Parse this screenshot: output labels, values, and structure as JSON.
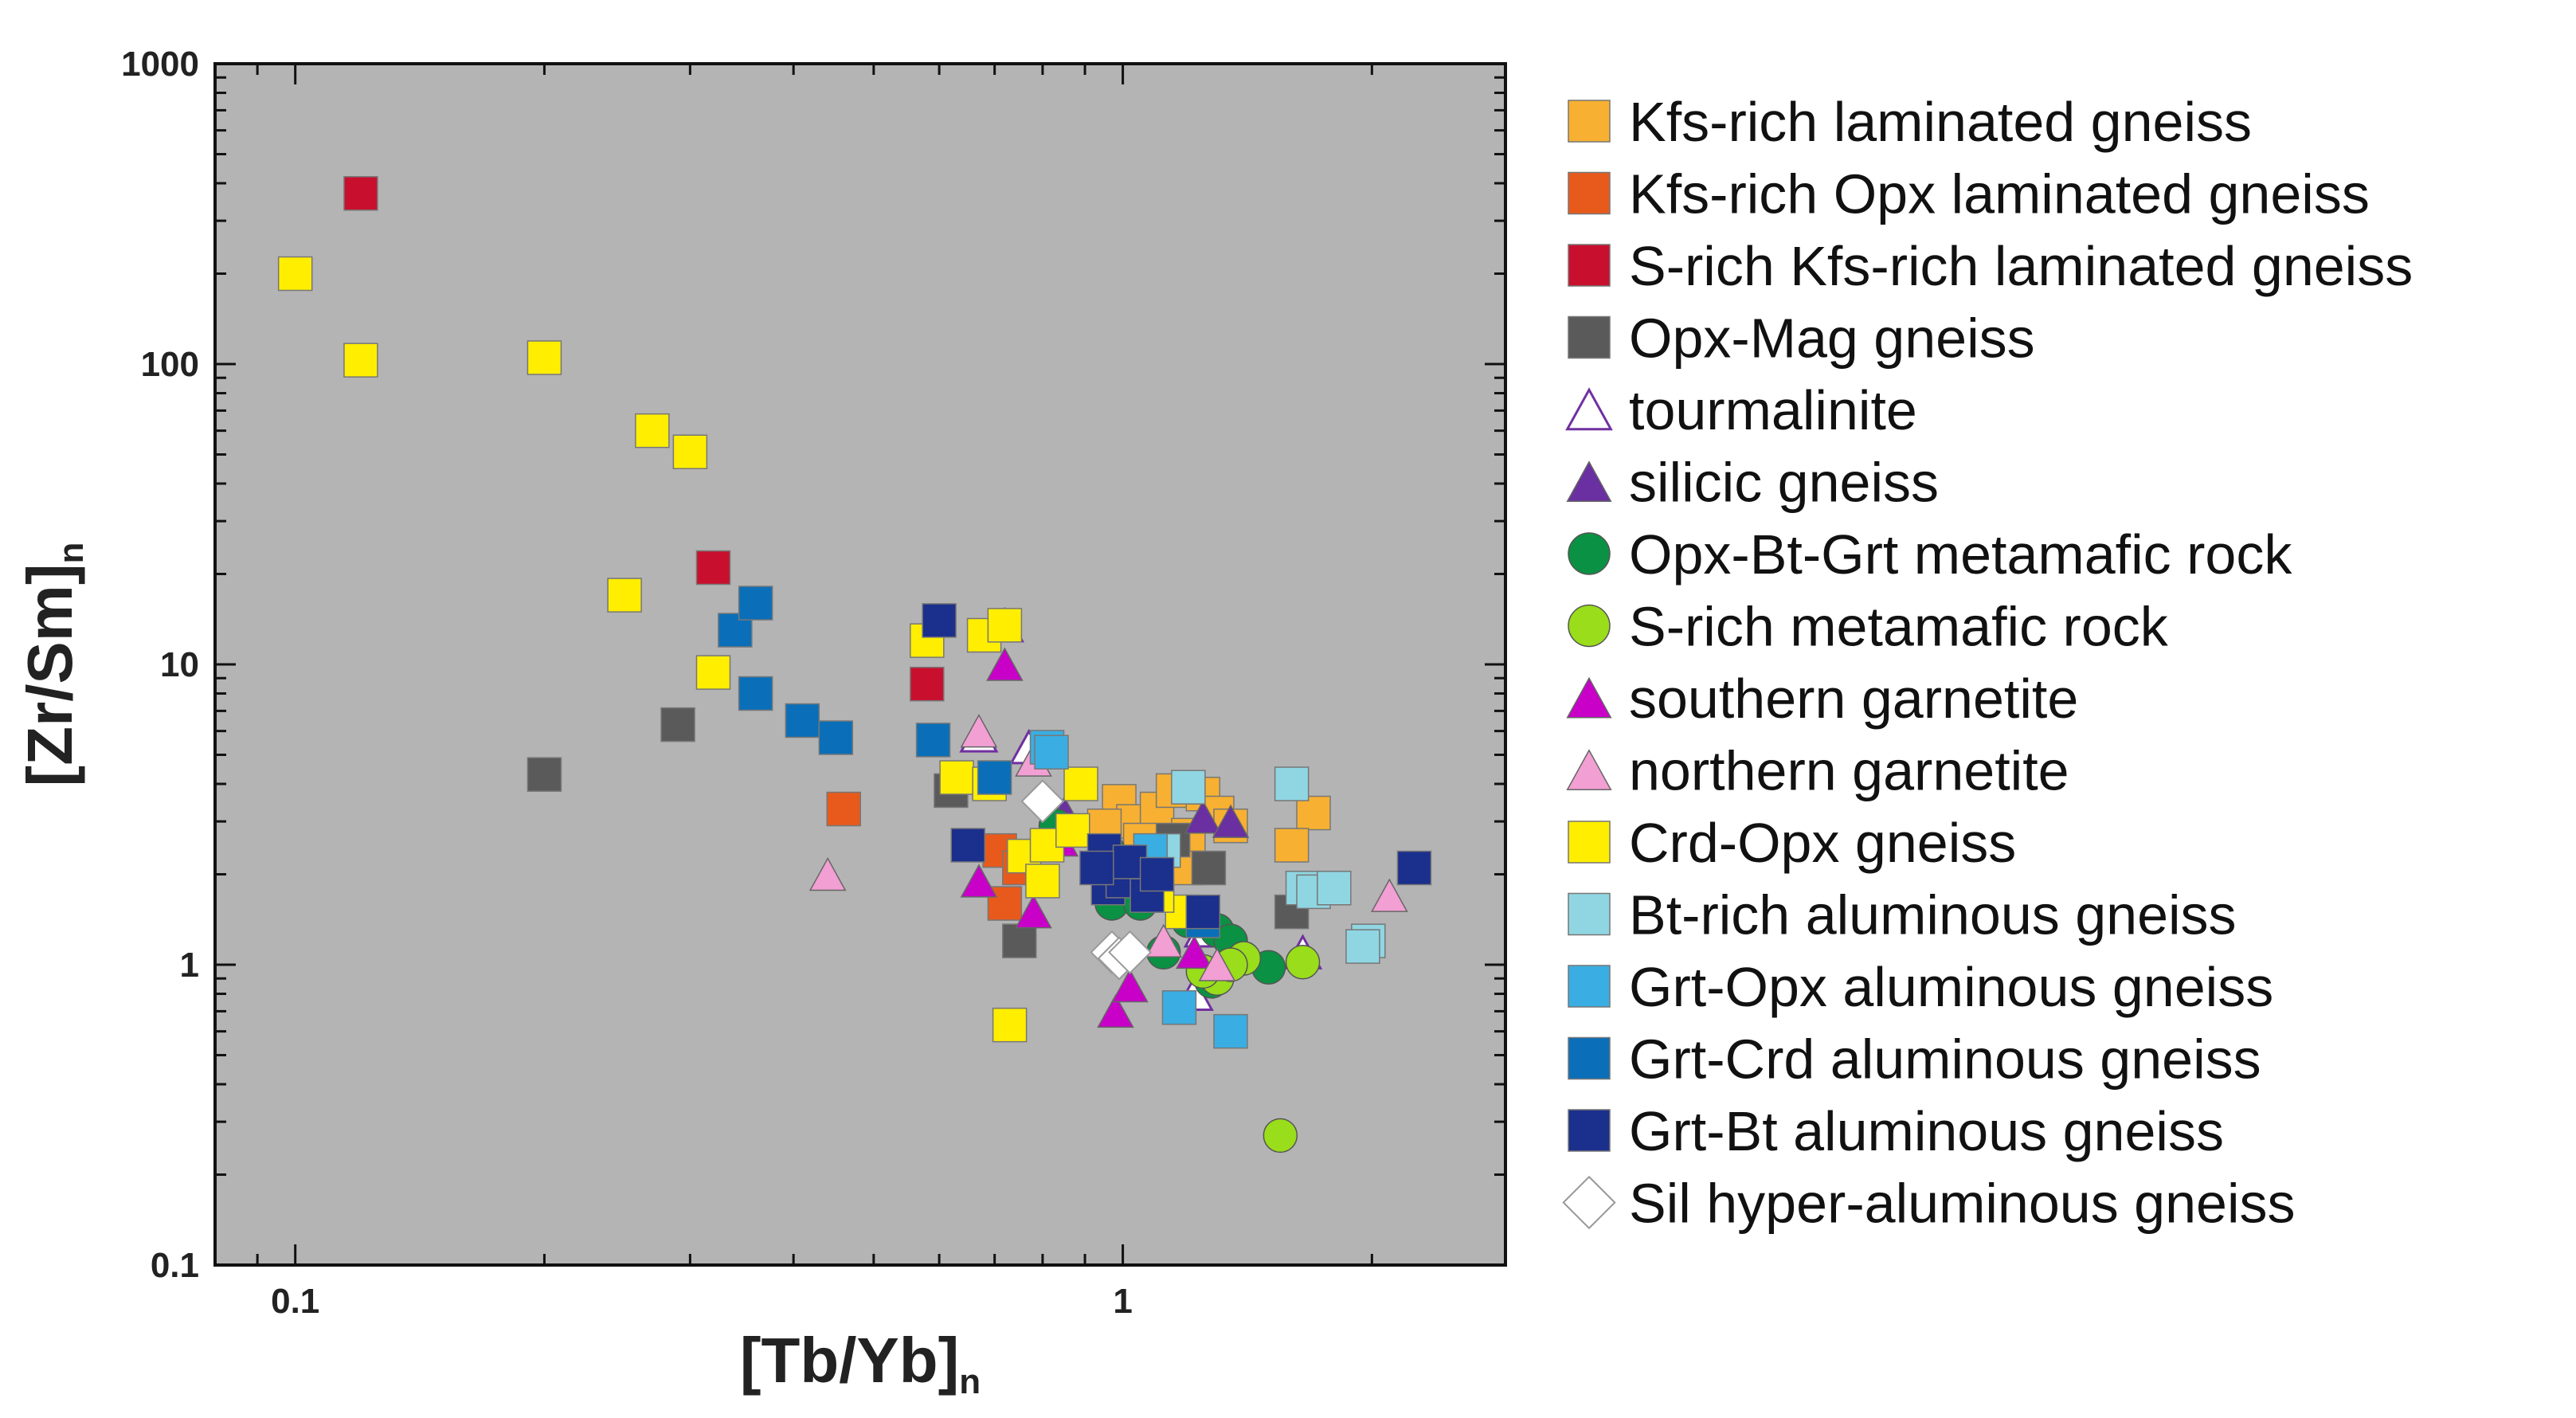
{
  "chart_data": {
    "type": "scatter",
    "xlabel": "[Tb/Yb]",
    "xlabel_sub": "n",
    "ylabel": "[Zr/Sm]",
    "ylabel_sub": "n",
    "x_scale": "log",
    "y_scale": "log",
    "xlim": [
      0.08,
      2.9
    ],
    "ylim": [
      0.1,
      1000
    ],
    "x_major_ticks": [
      {
        "value": 0.1,
        "label": "0.1"
      },
      {
        "value": 1,
        "label": "1"
      }
    ],
    "y_major_ticks": [
      {
        "value": 0.1,
        "label": "0.1"
      },
      {
        "value": 1,
        "label": "1"
      },
      {
        "value": 10,
        "label": "10"
      },
      {
        "value": 100,
        "label": "100"
      },
      {
        "value": 1000,
        "label": "1000"
      }
    ],
    "background": "#b4b4b4",
    "legend_position": "right",
    "series": [
      {
        "name": "Kfs-rich laminated gneiss",
        "marker": "square",
        "color": "#f7b031",
        "points": [
          [
            0.99,
            3.5
          ],
          [
            1.03,
            3.0
          ],
          [
            1.1,
            3.3
          ],
          [
            1.15,
            3.8
          ],
          [
            1.2,
            2.7
          ],
          [
            1.25,
            3.7
          ],
          [
            1.3,
            3.2
          ],
          [
            1.35,
            2.9
          ],
          [
            1.15,
            2.2
          ],
          [
            1.7,
            3.2
          ],
          [
            1.6,
            2.5
          ],
          [
            1.05,
            2.6
          ],
          [
            0.95,
            2.9
          ],
          [
            1.2,
            2.1
          ]
        ]
      },
      {
        "name": "Kfs-rich Opx laminated gneiss",
        "marker": "square",
        "color": "#e85a1b",
        "points": [
          [
            0.46,
            3.3
          ],
          [
            0.71,
            2.4
          ],
          [
            0.72,
            1.6
          ],
          [
            0.75,
            2.1
          ]
        ]
      },
      {
        "name": "S-rich Kfs-rich laminated gneiss",
        "marker": "square",
        "color": "#c8102e",
        "points": [
          [
            0.12,
            370
          ],
          [
            0.32,
            21
          ],
          [
            0.58,
            8.6
          ]
        ]
      },
      {
        "name": "Opx-Mag gneiss",
        "marker": "square",
        "color": "#5a5a5a",
        "points": [
          [
            0.2,
            4.3
          ],
          [
            0.29,
            6.3
          ],
          [
            0.62,
            3.8
          ],
          [
            0.75,
            1.2
          ],
          [
            1.27,
            2.1
          ],
          [
            1.6,
            1.5
          ],
          [
            1.15,
            2.6
          ]
        ]
      },
      {
        "name": "tourmalinite",
        "marker": "triangle-open",
        "color": "#7030a0",
        "points": [
          [
            0.72,
            13.5
          ],
          [
            0.67,
            5.8
          ],
          [
            0.77,
            5.3
          ],
          [
            1.25,
            1.3
          ],
          [
            1.65,
            1.1
          ],
          [
            1.22,
            0.8
          ]
        ]
      },
      {
        "name": "silicic gneiss",
        "marker": "triangle",
        "color": "#6a2fa0",
        "points": [
          [
            1.25,
            3.1
          ],
          [
            1.35,
            3.0
          ],
          [
            0.85,
            3.2
          ]
        ]
      },
      {
        "name": "Opx-Bt-Grt metamafic rock",
        "marker": "circle",
        "color": "#0a9143",
        "points": [
          [
            0.97,
            1.6
          ],
          [
            1.05,
            1.9
          ],
          [
            0.96,
            2.4
          ],
          [
            1.05,
            1.6
          ],
          [
            1.2,
            1.4
          ],
          [
            1.3,
            1.3
          ],
          [
            1.35,
            1.2
          ],
          [
            1.5,
            0.98
          ],
          [
            0.83,
            2.9
          ],
          [
            1.12,
            1.1
          ],
          [
            1.28,
            0.88
          ]
        ]
      },
      {
        "name": "S-rich metamafic rock",
        "marker": "circle",
        "color": "#99dd1b",
        "points": [
          [
            1.3,
            0.9
          ],
          [
            1.25,
            0.95
          ],
          [
            1.4,
            1.05
          ],
          [
            1.65,
            1.02
          ],
          [
            1.35,
            1.0
          ],
          [
            1.55,
            0.27
          ]
        ]
      },
      {
        "name": "southern garnetite",
        "marker": "triangle",
        "color": "#c800c8",
        "points": [
          [
            0.72,
            10.0
          ],
          [
            0.67,
            1.9
          ],
          [
            0.78,
            1.5
          ],
          [
            0.84,
            2.6
          ],
          [
            0.98,
            0.7
          ],
          [
            1.02,
            0.85
          ],
          [
            1.07,
            1.8
          ],
          [
            1.22,
            1.1
          ]
        ]
      },
      {
        "name": "northern garnetite",
        "marker": "triangle",
        "color": "#f29fd3",
        "points": [
          [
            0.44,
            2.0
          ],
          [
            0.67,
            6.0
          ],
          [
            0.78,
            4.8
          ],
          [
            1.12,
            1.2
          ],
          [
            2.1,
            1.7
          ],
          [
            1.3,
            1.0
          ]
        ]
      },
      {
        "name": "Crd-Opx gneiss",
        "marker": "square",
        "color": "#ffee00",
        "points": [
          [
            0.1,
            200
          ],
          [
            0.12,
            103
          ],
          [
            0.2,
            105
          ],
          [
            0.27,
            60
          ],
          [
            0.3,
            51
          ],
          [
            0.25,
            17
          ],
          [
            0.32,
            9.4
          ],
          [
            0.58,
            12.0
          ],
          [
            0.68,
            12.5
          ],
          [
            0.72,
            13.5
          ],
          [
            0.63,
            4.2
          ],
          [
            0.69,
            4.0
          ],
          [
            0.76,
            2.3
          ],
          [
            0.81,
            2.5
          ],
          [
            0.87,
            2.8
          ],
          [
            0.89,
            4.0
          ],
          [
            0.73,
            0.63
          ],
          [
            0.8,
            1.9
          ],
          [
            1.18,
            1.5
          ],
          [
            1.1,
            1.7
          ]
        ]
      },
      {
        "name": "Bt-rich aluminous gneiss",
        "marker": "square",
        "color": "#8fd6e2",
        "points": [
          [
            1.2,
            3.9
          ],
          [
            1.6,
            4.0
          ],
          [
            1.65,
            1.8
          ],
          [
            1.7,
            1.75
          ],
          [
            1.8,
            1.8
          ],
          [
            1.98,
            1.2
          ],
          [
            1.95,
            1.15
          ],
          [
            1.12,
            2.4
          ]
        ]
      },
      {
        "name": "Grt-Opx aluminous gneiss",
        "marker": "square",
        "color": "#3aaee2",
        "points": [
          [
            0.81,
            5.3
          ],
          [
            1.08,
            2.4
          ],
          [
            1.17,
            0.72
          ],
          [
            1.35,
            0.6
          ],
          [
            0.82,
            5.1
          ]
        ]
      },
      {
        "name": "Grt-Crd aluminous gneiss",
        "marker": "square",
        "color": "#0a6fb8",
        "points": [
          [
            0.34,
            13.0
          ],
          [
            0.36,
            16.0
          ],
          [
            0.36,
            8.0
          ],
          [
            0.41,
            6.5
          ],
          [
            0.45,
            5.7
          ],
          [
            0.59,
            5.6
          ],
          [
            0.7,
            4.2
          ],
          [
            1.25,
            1.4
          ]
        ]
      },
      {
        "name": "Grt-Bt aluminous gneiss",
        "marker": "square",
        "color": "#1b2f8c",
        "points": [
          [
            0.6,
            14.0
          ],
          [
            0.65,
            2.5
          ],
          [
            0.95,
            2.4
          ],
          [
            0.96,
            1.8
          ],
          [
            1.0,
            1.9
          ],
          [
            1.02,
            2.2
          ],
          [
            1.07,
            1.7
          ],
          [
            1.1,
            2.0
          ],
          [
            1.25,
            1.5
          ],
          [
            2.25,
            2.1
          ],
          [
            0.93,
            2.1
          ]
        ]
      },
      {
        "name": "Sil hyper-aluminous gneiss",
        "marker": "diamond",
        "color": "#ffffff",
        "points": [
          [
            0.8,
            3.5
          ],
          [
            0.97,
            1.1
          ],
          [
            0.99,
            1.05
          ],
          [
            1.02,
            1.1
          ]
        ]
      }
    ]
  }
}
